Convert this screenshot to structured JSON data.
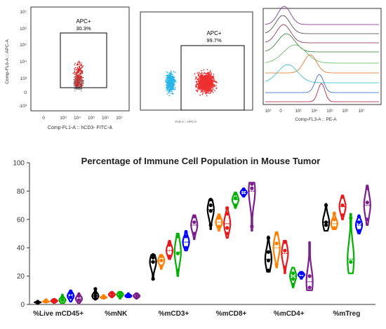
{
  "flow": {
    "p1": {
      "ylabel": "Comp-FL6-A :: APC-A",
      "xlabel": "Comp-FL1-A :: hCD3- FITC-A",
      "gate_name": "APC+",
      "gate_pct": "30.3%",
      "yticks": [
        "10⁷",
        "10⁶",
        "10⁵",
        "10⁴",
        "10³",
        "0",
        "-10³"
      ],
      "xticks": [
        "0",
        "10³",
        "10⁴",
        "10⁵",
        "10⁶",
        "10⁷"
      ]
    },
    "p2": {
      "gate_name": "APC+",
      "gate_pct": "99.7%",
      "xlabel": "FL6-A :: APC-A"
    },
    "p3": {
      "xlabel": "Comp-FL3-A :: PE-A",
      "xticks": [
        "10³",
        "0",
        "10³",
        "10⁴",
        "10⁵",
        "10⁶",
        "10⁷"
      ]
    }
  },
  "chart_data": {
    "type": "violin",
    "title": "Percentage of Immune Cell Population in Mouse Tumor",
    "xlabel": "",
    "ylabel": "",
    "ylim": [
      0,
      100
    ],
    "yticks": [
      0,
      20,
      40,
      60,
      80,
      100
    ],
    "grid": false,
    "categories": [
      "%Live mCD45+",
      "%mNK",
      "%mCD3+",
      "%mCD8+",
      "%mCD4+",
      "%mTreg"
    ],
    "series_colors": [
      "#000000",
      "#ff7f00",
      "#e41a1c",
      "#00b000",
      "#0000ff",
      "#7b1f8c"
    ],
    "groups": [
      [
        {
          "median": 1.5,
          "range": [
            1,
            2
          ],
          "points": [
            1,
            2
          ]
        },
        {
          "median": 2,
          "range": [
            1.5,
            3
          ],
          "points": [
            2,
            3
          ]
        },
        {
          "median": 2.5,
          "range": [
            1,
            4
          ],
          "points": [
            2,
            3
          ]
        },
        {
          "median": 3,
          "range": [
            1,
            7
          ],
          "points": [
            3,
            5
          ]
        },
        {
          "median": 6,
          "range": [
            2,
            10
          ],
          "points": [
            5,
            8,
            9
          ]
        },
        {
          "median": 4,
          "range": [
            1,
            8
          ],
          "points": [
            3,
            6
          ]
        }
      ],
      [
        {
          "median": 6,
          "range": [
            4,
            11
          ],
          "points": [
            4,
            6,
            8,
            11
          ]
        },
        {
          "median": 5,
          "range": [
            4,
            6
          ],
          "points": [
            5,
            6
          ]
        },
        {
          "median": 7,
          "range": [
            5,
            9
          ],
          "points": [
            6,
            8
          ]
        },
        {
          "median": 7,
          "range": [
            4,
            9
          ],
          "points": [
            6,
            8
          ]
        },
        {
          "median": 6,
          "range": [
            5,
            8
          ],
          "points": [
            6,
            7
          ]
        },
        {
          "median": 6,
          "range": [
            4,
            8
          ],
          "points": [
            5,
            7
          ]
        }
      ],
      [
        {
          "median": 30,
          "range": [
            18,
            35
          ],
          "points": [
            18,
            30,
            33,
            35
          ]
        },
        {
          "median": 31,
          "range": [
            25,
            35
          ],
          "points": [
            27,
            31,
            34
          ]
        },
        {
          "median": 38,
          "range": [
            32,
            45
          ],
          "points": [
            34,
            42,
            44
          ]
        },
        {
          "median": 37,
          "range": [
            20,
            50
          ],
          "points": [
            24,
            36,
            48
          ]
        },
        {
          "median": 44,
          "range": [
            38,
            52
          ],
          "points": [
            40,
            48,
            51
          ]
        },
        {
          "median": 56,
          "range": [
            46,
            63
          ],
          "points": [
            50,
            58,
            62
          ]
        }
      ],
      [
        {
          "median": 67,
          "range": [
            53,
            74
          ],
          "points": [
            56,
            66,
            70,
            74
          ]
        },
        {
          "median": 58,
          "range": [
            52,
            63
          ],
          "points": [
            55,
            61,
            63
          ]
        },
        {
          "median": 57,
          "range": [
            47,
            68
          ],
          "points": [
            50,
            54,
            64,
            68
          ]
        },
        {
          "median": 74,
          "range": [
            68,
            79
          ],
          "points": [
            70,
            75,
            78
          ]
        },
        {
          "median": 79,
          "range": [
            76,
            82
          ],
          "points": [
            77,
            81
          ]
        },
        {
          "median": 80,
          "range": [
            52,
            86
          ],
          "points": [
            55,
            82,
            85
          ]
        }
      ],
      [
        {
          "median": 32,
          "range": [
            23,
            48
          ],
          "points": [
            24,
            31,
            37,
            47
          ]
        },
        {
          "median": 40,
          "range": [
            26,
            51
          ],
          "points": [
            28,
            43,
            50
          ]
        },
        {
          "median": 36,
          "range": [
            22,
            45
          ],
          "points": [
            26,
            38,
            44
          ]
        },
        {
          "median": 20,
          "range": [
            12,
            26
          ],
          "points": [
            14,
            18,
            22
          ]
        },
        {
          "median": 21,
          "range": [
            18,
            23
          ],
          "points": [
            19,
            22
          ]
        },
        {
          "median": 16,
          "range": [
            10,
            44
          ],
          "points": [
            12,
            20
          ]
        }
      ],
      [
        {
          "median": 58,
          "range": [
            52,
            71
          ],
          "points": [
            56,
            58,
            70
          ]
        },
        {
          "median": 57,
          "range": [
            53,
            65
          ],
          "points": [
            54,
            60,
            64
          ]
        },
        {
          "median": 69,
          "range": [
            60,
            77
          ],
          "points": [
            63,
            70,
            76
          ]
        },
        {
          "median": 32,
          "range": [
            22,
            64
          ],
          "points": [
            30,
            61
          ]
        },
        {
          "median": 56,
          "range": [
            50,
            63
          ],
          "points": [
            52,
            58,
            62
          ]
        },
        {
          "median": 70,
          "range": [
            56,
            84
          ],
          "points": [
            60,
            72,
            82
          ]
        }
      ]
    ]
  }
}
